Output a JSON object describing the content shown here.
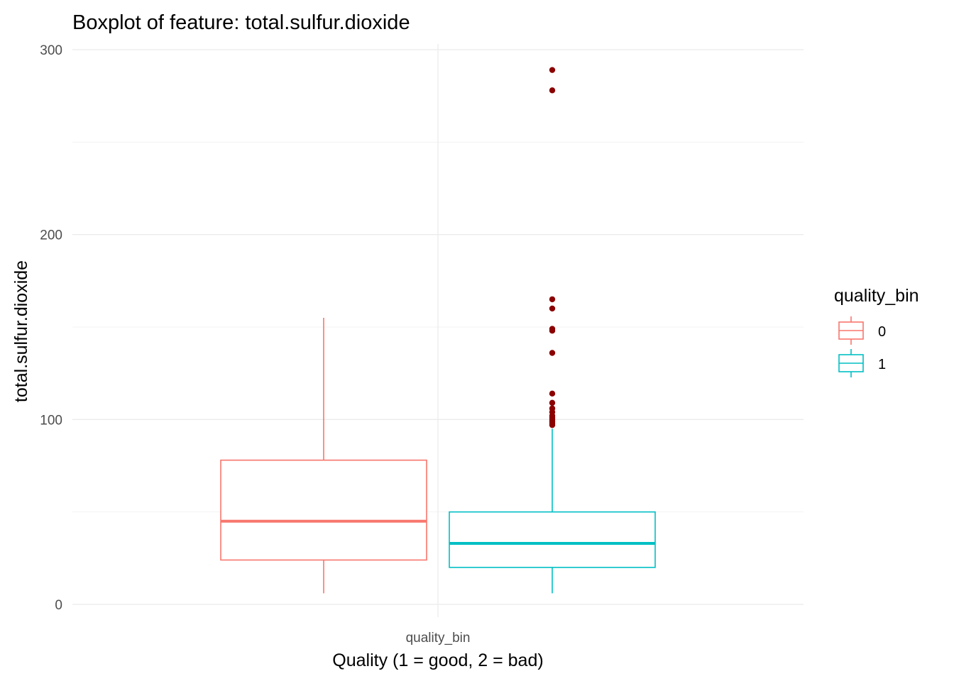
{
  "chart_data": {
    "type": "boxplot",
    "title": "Boxplot of feature: total.sulfur.dioxide",
    "xlabel": "Quality (1 = good, 2 = bad)",
    "ylabel": "total.sulfur.dioxide",
    "x_tick_label": "quality_bin",
    "ylim": [
      0,
      300
    ],
    "y_ticks": [
      0,
      100,
      200,
      300
    ],
    "grid": true,
    "legend": {
      "title": "quality_bin",
      "position": "right"
    },
    "series": [
      {
        "name": "0",
        "color": "#F8766D",
        "whisker_low": 6,
        "q1": 24,
        "median": 45,
        "q3": 78,
        "whisker_high": 155,
        "outliers": []
      },
      {
        "name": "1",
        "color": "#00BFC4",
        "whisker_low": 6,
        "q1": 20,
        "median": 33,
        "q3": 50,
        "whisker_high": 95,
        "outliers": [
          289,
          278,
          165,
          160,
          149,
          148,
          136,
          114,
          109,
          106,
          104,
          102,
          101,
          100,
          99,
          98,
          97
        ]
      }
    ],
    "outlier_color": "#8B0000"
  }
}
